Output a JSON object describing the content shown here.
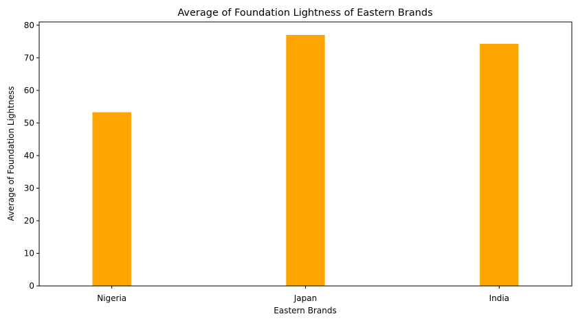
{
  "chart_data": {
    "type": "bar",
    "title": "Average of Foundation Lightness of Eastern Brands",
    "xlabel": "Eastern Brands",
    "ylabel": "Average of Foundation Lightness",
    "categories": [
      "Nigeria",
      "Japan",
      "India"
    ],
    "values": [
      53.3,
      77.0,
      74.3
    ],
    "ylim": [
      0,
      81
    ],
    "yticks": [
      0,
      10,
      20,
      30,
      40,
      50,
      60,
      70,
      80
    ],
    "bar_color": "#ffa500",
    "grid": false,
    "legend": "none"
  }
}
